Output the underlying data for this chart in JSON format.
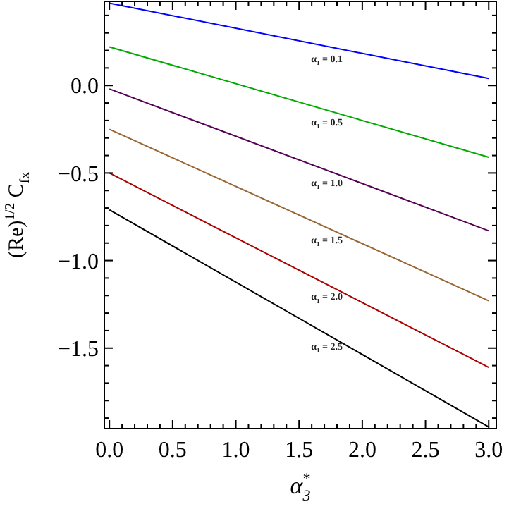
{
  "chart_data": {
    "type": "line",
    "xlabel": "α$_{3}$$^{*}$",
    "ylabel": "(Re)$^{1/2}$ C$_{fx}$",
    "xlim": [
      -0.04,
      3.06
    ],
    "ylim": [
      -1.96,
      0.48
    ],
    "xticks": [
      {
        "value": 0,
        "label": "0.0"
      },
      {
        "value": 0.1,
        "label": null
      },
      {
        "value": 0.2,
        "label": null
      },
      {
        "value": 0.3,
        "label": null
      },
      {
        "value": 0.4,
        "label": null
      },
      {
        "value": 0.5,
        "label": "0.5"
      },
      {
        "value": 0.6,
        "label": null
      },
      {
        "value": 0.7,
        "label": null
      },
      {
        "value": 0.8,
        "label": null
      },
      {
        "value": 0.9,
        "label": null
      },
      {
        "value": 1,
        "label": "1.0"
      },
      {
        "value": 1.1,
        "label": null
      },
      {
        "value": 1.2,
        "label": null
      },
      {
        "value": 1.3,
        "label": null
      },
      {
        "value": 1.4,
        "label": null
      },
      {
        "value": 1.5,
        "label": "1.5"
      },
      {
        "value": 1.6,
        "label": null
      },
      {
        "value": 1.7,
        "label": null
      },
      {
        "value": 1.8,
        "label": null
      },
      {
        "value": 1.9,
        "label": null
      },
      {
        "value": 2,
        "label": "2.0"
      },
      {
        "value": 2.1,
        "label": null
      },
      {
        "value": 2.2,
        "label": null
      },
      {
        "value": 2.3,
        "label": null
      },
      {
        "value": 2.4,
        "label": null
      },
      {
        "value": 2.5,
        "label": "2.5"
      },
      {
        "value": 2.6,
        "label": null
      },
      {
        "value": 2.7,
        "label": null
      },
      {
        "value": 2.8,
        "label": null
      },
      {
        "value": 2.9,
        "label": null
      },
      {
        "value": 3,
        "label": "3.0"
      }
    ],
    "yticks": [
      {
        "value": -1.9,
        "label": null
      },
      {
        "value": -1.8,
        "label": null
      },
      {
        "value": -1.7,
        "label": null
      },
      {
        "value": -1.6,
        "label": null
      },
      {
        "value": -1.5,
        "label": "−1.5"
      },
      {
        "value": -1.4,
        "label": null
      },
      {
        "value": -1.3,
        "label": null
      },
      {
        "value": -1.2,
        "label": null
      },
      {
        "value": -1.1,
        "label": null
      },
      {
        "value": -1,
        "label": "−1.0"
      },
      {
        "value": -0.9,
        "label": null
      },
      {
        "value": -0.8,
        "label": null
      },
      {
        "value": -0.7,
        "label": null
      },
      {
        "value": -0.6,
        "label": null
      },
      {
        "value": -0.5,
        "label": "−0.5"
      },
      {
        "value": -0.4,
        "label": null
      },
      {
        "value": -0.3,
        "label": null
      },
      {
        "value": -0.2,
        "label": null
      },
      {
        "value": -0.1,
        "label": null
      },
      {
        "value": 0,
        "label": "0.0"
      },
      {
        "value": 0.1,
        "label": null
      },
      {
        "value": 0.2,
        "label": null
      },
      {
        "value": 0.3,
        "label": null
      },
      {
        "value": 0.4,
        "label": null
      }
    ],
    "grid": false,
    "marker": "none",
    "line_style": "solid",
    "x": [
      0,
      3
    ],
    "series": [
      {
        "name": "α$_{1}$ = 0.1",
        "color": "#0000ff",
        "values": [
          0.47,
          0.04
        ]
      },
      {
        "name": "α$_{1}$ = 0.5",
        "color": "#00aa00",
        "values": [
          0.22,
          -0.41
        ]
      },
      {
        "name": "α$_{1}$ = 1.0",
        "color": "#550055",
        "values": [
          -0.02,
          -0.83
        ]
      },
      {
        "name": "α$_{1}$ = 1.5",
        "color": "#996633",
        "values": [
          -0.25,
          -1.23
        ]
      },
      {
        "name": "α$_{1}$ = 2.0",
        "color": "#aa0000",
        "values": [
          -0.5,
          -1.61
        ]
      },
      {
        "name": "α$_{1}$ = 2.5",
        "color": "#000000",
        "values": [
          -0.71,
          -1.95
        ]
      }
    ]
  }
}
